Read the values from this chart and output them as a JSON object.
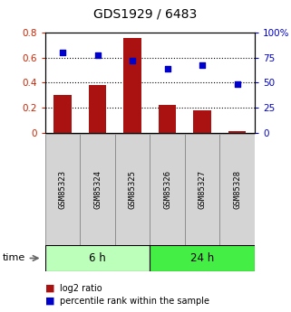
{
  "title": "GDS1929 / 6483",
  "categories": [
    "GSM85323",
    "GSM85324",
    "GSM85325",
    "GSM85326",
    "GSM85327",
    "GSM85328"
  ],
  "log2_ratio": [
    0.3,
    0.38,
    0.76,
    0.22,
    0.18,
    0.01
  ],
  "percentile_rank": [
    80,
    78,
    72,
    64,
    68,
    49
  ],
  "bar_color": "#aa1111",
  "dot_color": "#0000cc",
  "ylim_left": [
    0,
    0.8
  ],
  "ylim_right": [
    0,
    100
  ],
  "yticks_left": [
    0,
    0.2,
    0.4,
    0.6,
    0.8
  ],
  "ytick_labels_left": [
    "0",
    "0.2",
    "0.4",
    "0.6",
    "0.8"
  ],
  "yticks_right": [
    0,
    25,
    50,
    75,
    100
  ],
  "ytick_labels_right": [
    "0",
    "25",
    "50",
    "75",
    "100%"
  ],
  "group_labels": [
    "6 h",
    "24 h"
  ],
  "group_ranges": [
    [
      0,
      3
    ],
    [
      3,
      6
    ]
  ],
  "group_colors_light": [
    "#ccffcc",
    "#ccffcc"
  ],
  "group_colors_dark": [
    "#ccffcc",
    "#44ee44"
  ],
  "time_label": "time",
  "legend_items": [
    "log2 ratio",
    "percentile rank within the sample"
  ],
  "label_color_left": "#cc2200",
  "label_color_right": "#0000cc",
  "bar_width": 0.5
}
